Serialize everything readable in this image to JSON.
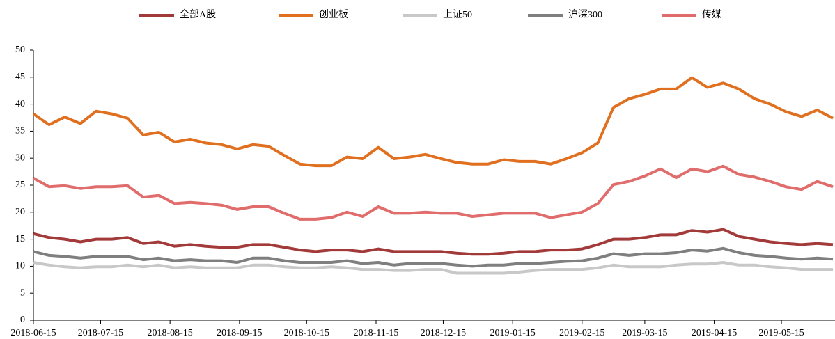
{
  "chart_data": {
    "type": "line",
    "x": [
      "2018-06-15",
      "2018-06-22",
      "2018-06-29",
      "2018-07-06",
      "2018-07-13",
      "2018-07-20",
      "2018-07-27",
      "2018-08-03",
      "2018-08-10",
      "2018-08-17",
      "2018-08-24",
      "2018-08-31",
      "2018-09-07",
      "2018-09-14",
      "2018-09-21",
      "2018-09-28",
      "2018-10-05",
      "2018-10-12",
      "2018-10-19",
      "2018-10-26",
      "2018-11-02",
      "2018-11-09",
      "2018-11-16",
      "2018-11-23",
      "2018-11-30",
      "2018-12-07",
      "2018-12-14",
      "2018-12-21",
      "2018-12-28",
      "2019-01-04",
      "2019-01-11",
      "2019-01-18",
      "2019-01-25",
      "2019-02-01",
      "2019-02-08",
      "2019-02-15",
      "2019-02-22",
      "2019-03-01",
      "2019-03-08",
      "2019-03-15",
      "2019-03-22",
      "2019-03-29",
      "2019-04-05",
      "2019-04-12",
      "2019-04-19",
      "2019-04-26",
      "2019-05-03",
      "2019-05-10",
      "2019-05-17",
      "2019-05-24",
      "2019-05-31",
      "2019-06-07"
    ],
    "series": [
      {
        "name": "全部A股",
        "color": "#a33a3a",
        "values": [
          16.0,
          15.3,
          15.0,
          14.5,
          15.0,
          15.0,
          15.3,
          14.2,
          14.5,
          13.7,
          14.0,
          13.7,
          13.5,
          13.5,
          14.0,
          14.0,
          13.5,
          13.0,
          12.7,
          13.0,
          13.0,
          12.7,
          13.2,
          12.7,
          12.7,
          12.7,
          12.7,
          12.4,
          12.2,
          12.2,
          12.4,
          12.7,
          12.7,
          13.0,
          13.0,
          13.2,
          14.0,
          15.0,
          15.0,
          15.3,
          15.8,
          15.8,
          16.6,
          16.3,
          16.8,
          15.5,
          15.0,
          14.5,
          14.2,
          14.0,
          14.2,
          14.0
        ]
      },
      {
        "name": "创业板",
        "color": "#e07020",
        "values": [
          38.2,
          36.2,
          37.6,
          36.4,
          38.7,
          38.2,
          37.4,
          34.3,
          34.8,
          33.0,
          33.5,
          32.8,
          32.5,
          31.7,
          32.5,
          32.2,
          30.5,
          28.9,
          28.6,
          28.6,
          30.2,
          29.9,
          32.0,
          29.9,
          30.2,
          30.7,
          29.9,
          29.2,
          28.9,
          28.9,
          29.7,
          29.4,
          29.4,
          28.9,
          29.9,
          31.0,
          32.8,
          39.4,
          41.0,
          41.8,
          42.8,
          42.8,
          44.9,
          43.1,
          43.9,
          42.8,
          41.0,
          40.0,
          38.6,
          37.7,
          38.9,
          37.4
        ]
      },
      {
        "name": "上证50",
        "color": "#c8c8c8",
        "values": [
          10.7,
          10.2,
          9.9,
          9.7,
          9.9,
          9.9,
          10.2,
          9.9,
          10.2,
          9.7,
          9.9,
          9.7,
          9.7,
          9.7,
          10.2,
          10.2,
          9.9,
          9.7,
          9.7,
          9.9,
          9.7,
          9.4,
          9.4,
          9.2,
          9.2,
          9.4,
          9.4,
          8.7,
          8.7,
          8.7,
          8.7,
          8.9,
          9.2,
          9.4,
          9.4,
          9.4,
          9.7,
          10.2,
          9.9,
          9.9,
          9.9,
          10.2,
          10.4,
          10.4,
          10.7,
          10.2,
          10.2,
          9.9,
          9.7,
          9.4,
          9.4,
          9.4
        ]
      },
      {
        "name": "沪深300",
        "color": "#7f7f7f",
        "values": [
          12.7,
          12.0,
          11.8,
          11.5,
          11.8,
          11.8,
          11.8,
          11.2,
          11.5,
          11.0,
          11.2,
          11.0,
          11.0,
          10.7,
          11.5,
          11.5,
          11.0,
          10.7,
          10.7,
          10.7,
          11.0,
          10.5,
          10.7,
          10.2,
          10.5,
          10.5,
          10.5,
          10.2,
          10.0,
          10.2,
          10.2,
          10.5,
          10.5,
          10.7,
          10.9,
          11.0,
          11.5,
          12.3,
          12.0,
          12.3,
          12.3,
          12.5,
          13.0,
          12.8,
          13.3,
          12.5,
          12.0,
          11.8,
          11.5,
          11.3,
          11.5,
          11.3
        ]
      },
      {
        "name": "传媒",
        "color": "#e06c6c",
        "values": [
          26.3,
          24.7,
          24.9,
          24.4,
          24.7,
          24.7,
          24.9,
          22.8,
          23.1,
          21.6,
          21.8,
          21.6,
          21.3,
          20.5,
          21.0,
          21.0,
          19.8,
          18.7,
          18.7,
          19.0,
          20.0,
          19.2,
          21.0,
          19.8,
          19.8,
          20.0,
          19.8,
          19.8,
          19.2,
          19.5,
          19.8,
          19.8,
          19.8,
          19.0,
          19.5,
          20.0,
          21.6,
          25.1,
          25.7,
          26.7,
          28.0,
          26.4,
          28.0,
          27.5,
          28.5,
          27.0,
          26.5,
          25.7,
          24.7,
          24.2,
          25.7,
          24.7
        ]
      }
    ],
    "xlim": [
      "2018-06-15",
      "2019-06-07"
    ],
    "xticks": [
      "2018-06-15",
      "2018-07-15",
      "2018-08-15",
      "2018-09-15",
      "2018-10-15",
      "2018-11-15",
      "2018-12-15",
      "2019-01-15",
      "2019-02-15",
      "2019-03-15",
      "2019-04-15",
      "2019-05-15"
    ],
    "ylim": [
      0,
      50
    ],
    "yticks": [
      0,
      5,
      10,
      15,
      20,
      25,
      30,
      35,
      40,
      45,
      50
    ],
    "legend": "top"
  }
}
